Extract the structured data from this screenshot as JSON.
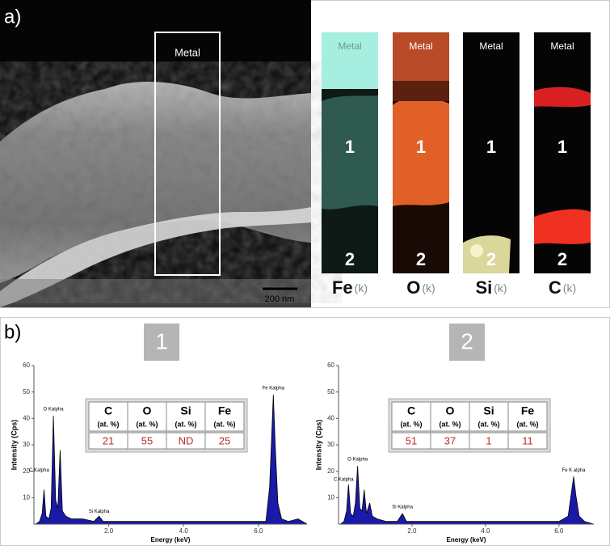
{
  "panel_a": {
    "label": "a)",
    "image_label": "Metal",
    "scale_bar": "200 nm",
    "maps": [
      {
        "top": "Metal",
        "regions": [
          "1",
          "2"
        ],
        "element": "Fe",
        "shell": "(k)"
      },
      {
        "top": "Metal",
        "regions": [
          "1",
          "2"
        ],
        "element": "O",
        "shell": "(k)"
      },
      {
        "top": "Metal",
        "regions": [
          "1",
          "2"
        ],
        "element": "Si",
        "shell": "(k)"
      },
      {
        "top": "Metal",
        "regions": [
          "1",
          "2"
        ],
        "element": "C",
        "shell": "(k)"
      }
    ]
  },
  "panel_b": {
    "label": "b)"
  },
  "chart_data": [
    {
      "type": "area",
      "box_label": "1",
      "y_label": "Intensity (Cps)",
      "x_label": "Energy (keV)",
      "color": "#1a1aa8",
      "xlim": [
        0,
        7.3
      ],
      "ylim": [
        0,
        60
      ],
      "xticks": [
        {
          "value": 2,
          "label": "2.0"
        },
        {
          "value": 4,
          "label": "4.0"
        },
        {
          "value": 6,
          "label": "6.0"
        }
      ],
      "yticks": [
        10,
        20,
        30,
        40,
        50,
        60
      ],
      "x": [
        0.05,
        0.15,
        0.22,
        0.27,
        0.32,
        0.4,
        0.46,
        0.52,
        0.58,
        0.64,
        0.7,
        0.76,
        0.85,
        1.0,
        1.3,
        1.6,
        1.74,
        1.85,
        2.2,
        3.0,
        4.0,
        5.0,
        5.9,
        6.2,
        6.3,
        6.36,
        6.4,
        6.45,
        6.52,
        6.62,
        6.8,
        7.06,
        7.3
      ],
      "values": [
        0,
        1,
        4,
        13,
        3,
        2,
        6,
        41,
        9,
        6,
        28,
        5,
        3,
        2,
        2,
        1,
        3,
        1,
        1,
        1,
        1,
        1,
        1,
        1,
        14,
        35,
        49,
        30,
        8,
        2,
        1,
        2,
        0
      ],
      "annotations": [
        "C Kalpha",
        "O Kalpha",
        "Si Kalpha",
        "Fe Kalpha"
      ],
      "table": {
        "headers": [
          [
            "C",
            "(at. %)"
          ],
          [
            "O",
            "(at. %)"
          ],
          [
            "Si",
            "(at. %)"
          ],
          [
            "Fe",
            "(at. %)"
          ]
        ],
        "values": [
          21,
          55,
          "ND",
          25
        ]
      }
    },
    {
      "type": "area",
      "box_label": "2",
      "y_label": "Intensity (Cps)",
      "x_label": "Energy (keV)",
      "color": "#1a1aa8",
      "xlim": [
        0,
        6.95
      ],
      "ylim": [
        0,
        60
      ],
      "xticks": [
        {
          "value": 2,
          "label": "2.0"
        },
        {
          "value": 4,
          "label": "4.0"
        },
        {
          "value": 6,
          "label": "6.0"
        }
      ],
      "yticks": [
        10,
        20,
        30,
        40,
        50,
        60
      ],
      "x": [
        0.05,
        0.15,
        0.22,
        0.27,
        0.33,
        0.4,
        0.46,
        0.52,
        0.58,
        0.64,
        0.7,
        0.76,
        0.85,
        0.92,
        1.05,
        1.3,
        1.6,
        1.74,
        1.85,
        2.2,
        3.0,
        4.0,
        5.0,
        6.0,
        6.25,
        6.34,
        6.4,
        6.46,
        6.55,
        6.7,
        6.95
      ],
      "values": [
        0,
        1,
        5,
        15,
        4,
        3,
        8,
        22,
        6,
        5,
        13,
        4,
        8,
        3,
        2,
        1,
        1,
        4,
        1,
        1,
        1,
        1,
        1,
        1,
        3,
        12,
        18,
        11,
        3,
        1,
        0
      ],
      "annotations": [
        "C Kalpha",
        "O Kalpha",
        "Si Kalpha",
        "Fe K alpha"
      ],
      "table": {
        "headers": [
          [
            "C",
            "(at. %)"
          ],
          [
            "O",
            "(at. %)"
          ],
          [
            "Si",
            "(at. %)"
          ],
          [
            "Fe",
            "(at. %)"
          ]
        ],
        "values": [
          51,
          37,
          1,
          11
        ]
      }
    }
  ]
}
